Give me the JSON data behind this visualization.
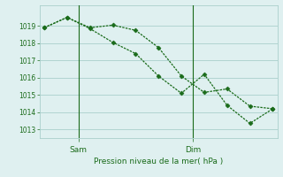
{
  "line1_x": [
    0,
    1,
    2,
    3,
    4,
    5,
    6,
    7,
    8,
    9,
    10
  ],
  "line1_y": [
    1018.9,
    1019.5,
    1018.9,
    1019.05,
    1018.75,
    1017.75,
    1016.1,
    1015.15,
    1015.35,
    1014.35,
    1014.2
  ],
  "line2_x": [
    0,
    1,
    2,
    3,
    4,
    5,
    6,
    7,
    8,
    9,
    10
  ],
  "line2_y": [
    1018.9,
    1019.5,
    1018.85,
    1018.05,
    1017.4,
    1016.1,
    1015.1,
    1016.2,
    1014.4,
    1013.35,
    1014.2
  ],
  "line_color": "#1a6b1a",
  "marker": "D",
  "marker_size": 2.5,
  "bg_color": "#dff0f0",
  "grid_color": "#aacfcc",
  "ylabel": "Pression niveau de la mer( hPa )",
  "ylim": [
    1012.5,
    1020.2
  ],
  "yticks": [
    1013,
    1014,
    1015,
    1016,
    1017,
    1018,
    1019
  ],
  "xtick_sam_x": 1.5,
  "xtick_dim_x": 6.5,
  "sam_label": "Sam",
  "dim_label": "Dim",
  "xlim": [
    -0.2,
    10.2
  ],
  "linewidth": 0.9,
  "sam_vline_x": 1.5,
  "dim_vline_x": 6.5
}
